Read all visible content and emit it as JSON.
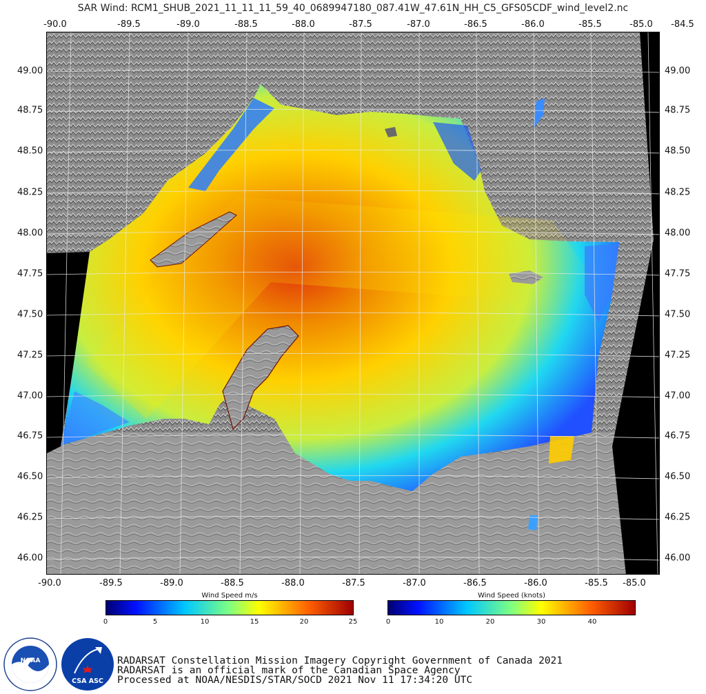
{
  "title": "SAR Wind: RCM1_SHUB_2021_11_11_11_59_40_0689947180_087.41W_47.61N_HH_C5_GFS05CDF_wind_level2.nc",
  "lon_labels": [
    "-90.0",
    "-89.5",
    "-89.0",
    "-88.5",
    "-88.0",
    "-87.5",
    "-87.0",
    "-86.5",
    "-86.0",
    "-85.5",
    "-85.0",
    "-84.5"
  ],
  "lon_labels_bottom": [
    "-90.0",
    "-89.5",
    "-89.0",
    "-88.5",
    "-88.0",
    "-87.5",
    "-87.0",
    "-86.5",
    "-86.0",
    "-85.5",
    "-85.0"
  ],
  "lat_labels": [
    "49.00",
    "48.75",
    "48.50",
    "48.25",
    "48.00",
    "47.75",
    "47.50",
    "47.25",
    "47.00",
    "46.75",
    "46.50",
    "46.25",
    "46.00"
  ],
  "colorbar_ms": {
    "title": "Wind Speed m/s",
    "ticks": [
      "0",
      "5",
      "10",
      "15",
      "20",
      "25"
    ]
  },
  "colorbar_knots": {
    "title": "Wind Speed (knots)",
    "ticks": [
      "0",
      "10",
      "20",
      "30",
      "40"
    ]
  },
  "logos": {
    "noaa": "NOAA",
    "csa": "CSA ASC"
  },
  "credits": [
    "RADARSAT Constellation Mission Imagery Copyright Government of Canada 2021",
    "RADARSAT is an official mark of the Canadian Space Agency",
    "Processed at NOAA/NESDIS/STAR/SOCD 2021 Nov 11 17:34:20 UTC"
  ],
  "colors": {
    "land": "#8a8a8a",
    "outside": "#000000",
    "wind_low": "#1e5bff",
    "wind_mid": "#00d0ff",
    "wind_high": "#ffe100",
    "wind_max": "#d01000"
  }
}
